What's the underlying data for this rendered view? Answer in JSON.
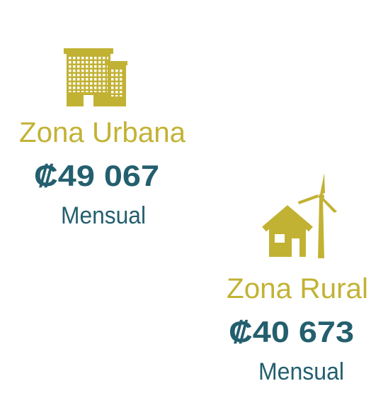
{
  "items": [
    {
      "label": "Zona Urbana",
      "amount": "₡49 067",
      "period": "Mensual"
    },
    {
      "label": "Zona Rural",
      "amount": "₡40 673",
      "period": "Mensual"
    }
  ]
}
